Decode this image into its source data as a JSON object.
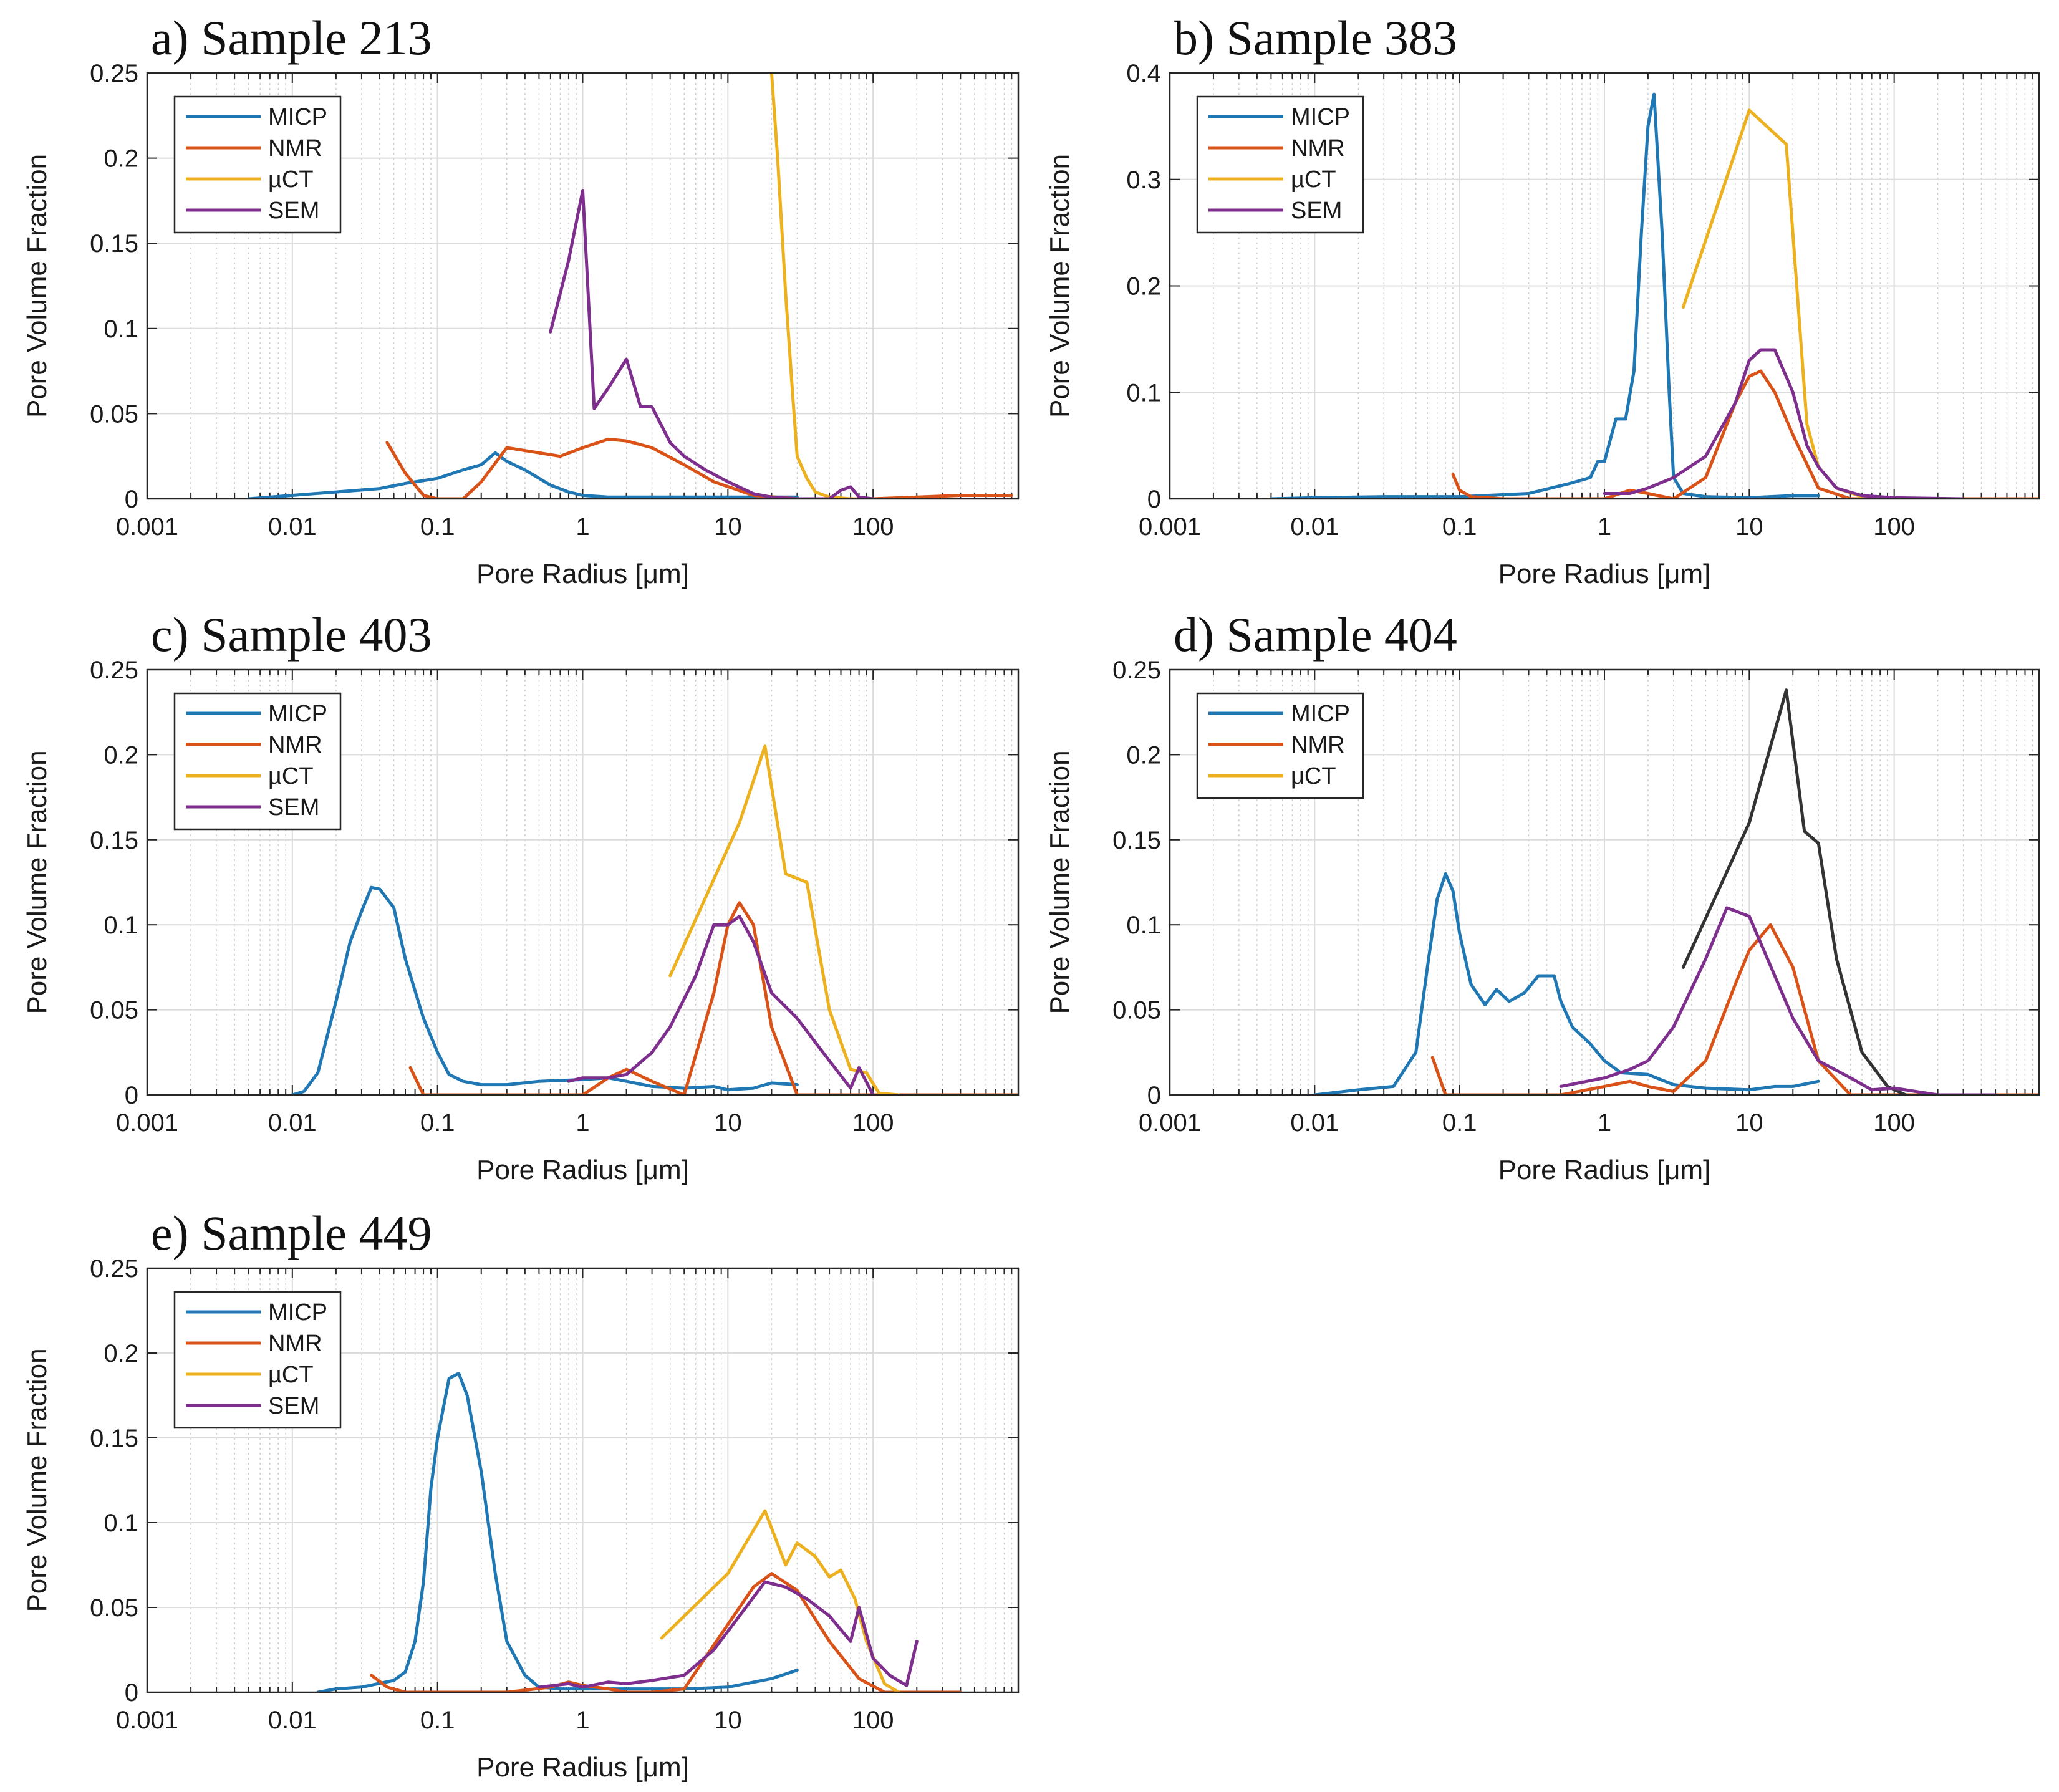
{
  "colors": {
    "MICP": "#1f77b4",
    "NMR": "#d95319",
    "µCT": "#edb120",
    "SEM": "#7e2f8e"
  },
  "chart_data": [
    {
      "type": "line",
      "title": "a) Sample 213",
      "xlabel": "Pore Radius [μm]",
      "ylabel": "Pore Volume Fraction",
      "xscale": "log",
      "xlim": [
        0.001,
        1000
      ],
      "ylim": [
        0,
        0.25
      ],
      "xticks": [
        "0.001",
        "0.01",
        "0.1",
        "1",
        "10",
        "100"
      ],
      "yticks": [
        "0",
        "0.05",
        "0.1",
        "0.15",
        "0.2",
        "0.25"
      ],
      "grid": true,
      "legend": "top-left",
      "legend_entries": [
        "MICP",
        "NMR",
        "µCT",
        "SEM"
      ],
      "series": [
        {
          "name": "MICP",
          "x": [
            0.005,
            0.01,
            0.02,
            0.04,
            0.06,
            0.1,
            0.15,
            0.2,
            0.25,
            0.3,
            0.4,
            0.6,
            0.8,
            1,
            1.5,
            3,
            10,
            30
          ],
          "y": [
            0,
            0.002,
            0.004,
            0.006,
            0.009,
            0.012,
            0.017,
            0.02,
            0.027,
            0.022,
            0.017,
            0.008,
            0.004,
            0.002,
            0.001,
            0.001,
            0.001,
            0.001
          ]
        },
        {
          "name": "NMR",
          "x": [
            0.045,
            0.06,
            0.08,
            0.1,
            0.15,
            0.2,
            0.3,
            0.5,
            0.7,
            1,
            1.5,
            2,
            3,
            5,
            8,
            15,
            30,
            60,
            100,
            200,
            400,
            900
          ],
          "y": [
            0.033,
            0.015,
            0.002,
            0,
            0,
            0.01,
            0.03,
            0.027,
            0.025,
            0.03,
            0.035,
            0.034,
            0.03,
            0.02,
            0.01,
            0.002,
            0,
            0,
            0,
            0.001,
            0.002,
            0.002
          ]
        },
        {
          "name": "µCT",
          "x": [
            20,
            22,
            25,
            28,
            30,
            35,
            40,
            50,
            70,
            100
          ],
          "y": [
            0.25,
            0.2,
            0.12,
            0.06,
            0.025,
            0.012,
            0.004,
            0.001,
            0,
            0
          ]
        },
        {
          "name": "SEM",
          "x": [
            0.6,
            0.8,
            1,
            1.2,
            1.5,
            2,
            2.5,
            3,
            4,
            5,
            7,
            10,
            15,
            20,
            30,
            50,
            60,
            70,
            80,
            100
          ],
          "y": [
            0.098,
            0.14,
            0.181,
            0.053,
            0.065,
            0.082,
            0.054,
            0.054,
            0.033,
            0.025,
            0.017,
            0.01,
            0.003,
            0.001,
            0,
            0,
            0.005,
            0.007,
            0.001,
            0
          ]
        }
      ]
    },
    {
      "type": "line",
      "title": "b) Sample 383",
      "xlabel": "Pore Radius [μm]",
      "ylabel": "Pore Volume Fraction",
      "xscale": "log",
      "xlim": [
        0.001,
        1000
      ],
      "ylim": [
        0,
        0.4
      ],
      "xticks": [
        "0.001",
        "0.01",
        "0.1",
        "1",
        "10",
        "100"
      ],
      "yticks": [
        "0",
        "0.1",
        "0.2",
        "0.3",
        "0.4"
      ],
      "grid": true,
      "legend": "top-left",
      "legend_entries": [
        "MICP",
        "NMR",
        "µCT",
        "SEM"
      ],
      "series": [
        {
          "name": "MICP",
          "x": [
            0.005,
            0.01,
            0.03,
            0.1,
            0.3,
            0.6,
            0.8,
            0.9,
            1,
            1.2,
            1.4,
            1.6,
            1.8,
            2,
            2.2,
            2.5,
            2.8,
            3,
            3.5,
            5,
            10,
            20,
            30
          ],
          "y": [
            0,
            0.001,
            0.002,
            0.002,
            0.005,
            0.015,
            0.02,
            0.035,
            0.035,
            0.075,
            0.075,
            0.12,
            0.25,
            0.35,
            0.38,
            0.25,
            0.1,
            0.02,
            0.005,
            0.002,
            0.001,
            0.003,
            0.003
          ]
        },
        {
          "name": "NMR",
          "x": [
            0.09,
            0.1,
            0.12,
            0.2,
            0.5,
            1,
            1.5,
            2,
            3,
            5,
            8,
            10,
            12,
            15,
            20,
            30,
            50,
            100,
            200,
            500,
            1000
          ],
          "y": [
            0.023,
            0.008,
            0.002,
            0,
            0,
            0,
            0.008,
            0.005,
            0,
            0.02,
            0.09,
            0.115,
            0.12,
            0.1,
            0.06,
            0.01,
            0,
            0,
            0,
            0,
            0
          ]
        },
        {
          "name": "µCT",
          "x": [
            3.5,
            10,
            18,
            25,
            30,
            40,
            60,
            100
          ],
          "y": [
            0.18,
            0.365,
            0.333,
            0.07,
            0.03,
            0.01,
            0.002,
            0
          ]
        },
        {
          "name": "SEM",
          "x": [
            1,
            1.5,
            2,
            3,
            5,
            8,
            10,
            12,
            15,
            20,
            25,
            30,
            40,
            60,
            100,
            300
          ],
          "y": [
            0.005,
            0.005,
            0.01,
            0.02,
            0.04,
            0.09,
            0.13,
            0.14,
            0.14,
            0.1,
            0.05,
            0.03,
            0.01,
            0.003,
            0.001,
            0
          ]
        }
      ]
    },
    {
      "type": "line",
      "title": "c) Sample 403",
      "xlabel": "Pore Radius [μm]",
      "ylabel": "Pore Volume Fraction",
      "xscale": "log",
      "xlim": [
        0.001,
        1000
      ],
      "ylim": [
        0,
        0.25
      ],
      "xticks": [
        "0.001",
        "0.01",
        "0.1",
        "1",
        "10",
        "100"
      ],
      "yticks": [
        "0",
        "0.05",
        "0.1",
        "0.15",
        "0.2",
        "0.25"
      ],
      "grid": true,
      "legend": "top-left",
      "legend_entries": [
        "MICP",
        "NMR",
        "µCT",
        "SEM"
      ],
      "series": [
        {
          "name": "MICP",
          "x": [
            0.01,
            0.012,
            0.015,
            0.02,
            0.025,
            0.03,
            0.035,
            0.04,
            0.05,
            0.06,
            0.08,
            0.1,
            0.12,
            0.15,
            0.2,
            0.3,
            0.5,
            1,
            1.5,
            2,
            3,
            5,
            8,
            10,
            15,
            20,
            30
          ],
          "y": [
            0,
            0.002,
            0.013,
            0.055,
            0.09,
            0.108,
            0.122,
            0.121,
            0.11,
            0.08,
            0.045,
            0.025,
            0.012,
            0.008,
            0.006,
            0.006,
            0.008,
            0.009,
            0.01,
            0.008,
            0.005,
            0.004,
            0.005,
            0.003,
            0.004,
            0.007,
            0.006
          ]
        },
        {
          "name": "NMR",
          "x": [
            0.065,
            0.08,
            0.1,
            0.2,
            0.5,
            1,
            1.5,
            2,
            3,
            5,
            8,
            10,
            12,
            15,
            20,
            30,
            50,
            100,
            200,
            500,
            1000
          ],
          "y": [
            0.016,
            0,
            0,
            0,
            0,
            0,
            0.01,
            0.015,
            0.008,
            0,
            0.06,
            0.1,
            0.113,
            0.1,
            0.04,
            0,
            0,
            0,
            0,
            0,
            0
          ]
        },
        {
          "name": "µCT",
          "x": [
            4,
            12,
            18,
            25,
            35,
            50,
            70,
            90,
            110,
            150
          ],
          "y": [
            0.07,
            0.16,
            0.205,
            0.13,
            0.125,
            0.05,
            0.015,
            0.013,
            0.001,
            0
          ]
        },
        {
          "name": "SEM",
          "x": [
            0.8,
            1,
            1.5,
            2,
            3,
            4,
            6,
            8,
            10,
            12,
            15,
            20,
            30,
            50,
            70,
            80,
            100
          ],
          "y": [
            0.008,
            0.01,
            0.01,
            0.012,
            0.025,
            0.04,
            0.07,
            0.1,
            0.1,
            0.105,
            0.09,
            0.06,
            0.045,
            0.02,
            0.004,
            0.016,
            0
          ]
        }
      ]
    },
    {
      "type": "line",
      "title": "d) Sample 404",
      "xlabel": "Pore Radius [μm]",
      "ylabel": "Pore Volume Fraction",
      "xscale": "log",
      "xlim": [
        0.001,
        1000
      ],
      "ylim": [
        0,
        0.25
      ],
      "xticks": [
        "0.001",
        "0.01",
        "0.1",
        "1",
        "10",
        "100"
      ],
      "yticks": [
        "0",
        "0.05",
        "0.1",
        "0.15",
        "0.2",
        "0.25"
      ],
      "grid": true,
      "legend": "top-left",
      "legend_entries": [
        "MICP",
        "NMR",
        "μCT"
      ],
      "series": [
        {
          "name": "MICP",
          "x": [
            0.01,
            0.02,
            0.035,
            0.05,
            0.06,
            0.07,
            0.08,
            0.09,
            0.1,
            0.12,
            0.15,
            0.18,
            0.22,
            0.28,
            0.35,
            0.45,
            0.5,
            0.6,
            0.8,
            1,
            1.3,
            2,
            3,
            5,
            10,
            15,
            20,
            30
          ],
          "y": [
            0,
            0.003,
            0.005,
            0.025,
            0.075,
            0.115,
            0.13,
            0.12,
            0.095,
            0.065,
            0.053,
            0.062,
            0.055,
            0.06,
            0.07,
            0.07,
            0.055,
            0.04,
            0.03,
            0.02,
            0.013,
            0.012,
            0.006,
            0.004,
            0.003,
            0.005,
            0.005,
            0.008
          ]
        },
        {
          "name": "NMR",
          "x": [
            0.065,
            0.08,
            0.1,
            0.2,
            0.5,
            1,
            1.5,
            2,
            3,
            5,
            8,
            10,
            14,
            20,
            30,
            50,
            100,
            200,
            500,
            1000
          ],
          "y": [
            0.022,
            0,
            0,
            0,
            0,
            0.005,
            0.008,
            0.005,
            0.002,
            0.02,
            0.065,
            0.085,
            0.1,
            0.075,
            0.02,
            0,
            0,
            0,
            0,
            0
          ]
        },
        {
          "name": "μCT",
          "x": [
            3.5,
            10,
            18,
            24,
            30,
            40,
            60,
            90,
            120
          ],
          "y": [
            0.075,
            0.16,
            0.238,
            0.155,
            0.148,
            0.08,
            0.025,
            0.005,
            0
          ]
        },
        {
          "name": "SEM",
          "x": [
            0.5,
            1,
            1.5,
            2,
            3,
            5,
            7,
            10,
            15,
            20,
            30,
            50,
            70,
            100,
            200,
            500
          ],
          "y": [
            0.005,
            0.01,
            0.015,
            0.02,
            0.04,
            0.08,
            0.11,
            0.105,
            0.07,
            0.045,
            0.02,
            0.01,
            0.003,
            0.004,
            0,
            0
          ]
        }
      ]
    },
    {
      "type": "line",
      "title": "e) Sample 449",
      "xlabel": "Pore Radius [μm]",
      "ylabel": "Pore Volume Fraction",
      "xscale": "log",
      "xlim": [
        0.001,
        1000
      ],
      "ylim": [
        0,
        0.25
      ],
      "xticks": [
        "0.001",
        "0.01",
        "0.1",
        "1",
        "10",
        "100"
      ],
      "yticks": [
        "0",
        "0.05",
        "0.1",
        "0.15",
        "0.2",
        "0.25"
      ],
      "grid": true,
      "legend": "top-left",
      "legend_entries": [
        "MICP",
        "NMR",
        "µCT",
        "SEM"
      ],
      "series": [
        {
          "name": "MICP",
          "x": [
            0.015,
            0.02,
            0.03,
            0.05,
            0.06,
            0.07,
            0.08,
            0.09,
            0.1,
            0.12,
            0.14,
            0.16,
            0.2,
            0.25,
            0.3,
            0.4,
            0.5,
            0.7,
            1,
            2,
            5,
            10,
            20,
            30
          ],
          "y": [
            0,
            0.002,
            0.003,
            0.007,
            0.012,
            0.03,
            0.065,
            0.12,
            0.15,
            0.185,
            0.188,
            0.175,
            0.13,
            0.07,
            0.03,
            0.01,
            0.003,
            0.002,
            0.002,
            0.002,
            0.002,
            0.003,
            0.008,
            0.013
          ]
        },
        {
          "name": "NMR",
          "x": [
            0.035,
            0.045,
            0.06,
            0.1,
            0.3,
            0.6,
            0.8,
            1,
            1.5,
            2,
            3,
            5,
            10,
            15,
            20,
            30,
            50,
            80,
            120,
            200,
            400
          ],
          "y": [
            0.01,
            0.003,
            0,
            0,
            0,
            0.003,
            0.006,
            0.004,
            0.002,
            0,
            0,
            0.002,
            0.04,
            0.062,
            0.07,
            0.06,
            0.03,
            0.008,
            0,
            0,
            0
          ]
        },
        {
          "name": "µCT",
          "x": [
            3.5,
            10,
            18,
            25,
            30,
            40,
            50,
            60,
            75,
            90,
            120,
            150
          ],
          "y": [
            0.032,
            0.07,
            0.107,
            0.075,
            0.088,
            0.08,
            0.068,
            0.072,
            0.055,
            0.03,
            0.005,
            0
          ]
        },
        {
          "name": "SEM",
          "x": [
            0.5,
            0.8,
            1,
            1.5,
            2,
            3,
            5,
            8,
            12,
            18,
            25,
            35,
            50,
            70,
            80,
            100,
            130,
            170,
            200
          ],
          "y": [
            0.003,
            0.005,
            0.003,
            0.006,
            0.005,
            0.007,
            0.01,
            0.025,
            0.045,
            0.065,
            0.062,
            0.055,
            0.045,
            0.03,
            0.05,
            0.02,
            0.01,
            0.004,
            0.03
          ]
        }
      ]
    }
  ]
}
